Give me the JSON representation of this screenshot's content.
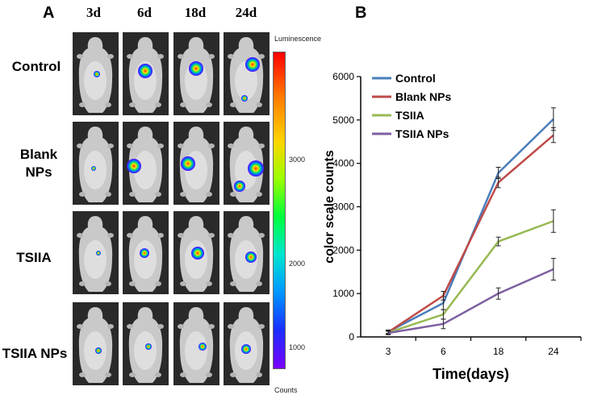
{
  "panel_a": {
    "label": "A",
    "columns": [
      "3d",
      "6d",
      "18d",
      "24d"
    ],
    "rows": [
      {
        "label_lines": [
          "Control"
        ]
      },
      {
        "label_lines": [
          "Blank",
          "NPs"
        ]
      },
      {
        "label_lines": [
          "TSIIA"
        ]
      },
      {
        "label_lines": [
          "TSIIA NPs"
        ]
      }
    ],
    "colorbar": {
      "title": "Luminescence",
      "ticks": [
        "3000",
        "2000",
        "1000"
      ],
      "unit": "Counts",
      "colors": [
        "#ff0000",
        "#ff7a00",
        "#ffd400",
        "#9aff00",
        "#00ff3c",
        "#00e5d0",
        "#0096ff",
        "#1a2cff",
        "#7a00ff"
      ]
    }
  },
  "panel_b": {
    "label": "B"
  },
  "chart_data": {
    "type": "line",
    "title": "",
    "xlabel": "Time(days)",
    "ylabel": "color scale counts",
    "categories": [
      "3",
      "6",
      "18",
      "24"
    ],
    "ylim": [
      0,
      6000
    ],
    "yticks": [
      0,
      1000,
      2000,
      3000,
      4000,
      5000,
      6000
    ],
    "legend_position": "top-left",
    "series": [
      {
        "name": "Control",
        "color": "#4a7ebb",
        "values": [
          120,
          780,
          3780,
          5020
        ],
        "errors": [
          40,
          150,
          130,
          260
        ]
      },
      {
        "name": "Blank NPs",
        "color": "#be4b48",
        "values": [
          110,
          950,
          3560,
          4650
        ],
        "errors": [
          40,
          100,
          120,
          170
        ]
      },
      {
        "name": "TSIIA",
        "color": "#98b954",
        "values": [
          100,
          520,
          2200,
          2670
        ],
        "errors": [
          40,
          110,
          100,
          260
        ]
      },
      {
        "name": "TSIIA NPs",
        "color": "#7d60a0",
        "values": [
          90,
          300,
          1000,
          1560
        ],
        "errors": [
          40,
          110,
          130,
          250
        ]
      }
    ]
  }
}
